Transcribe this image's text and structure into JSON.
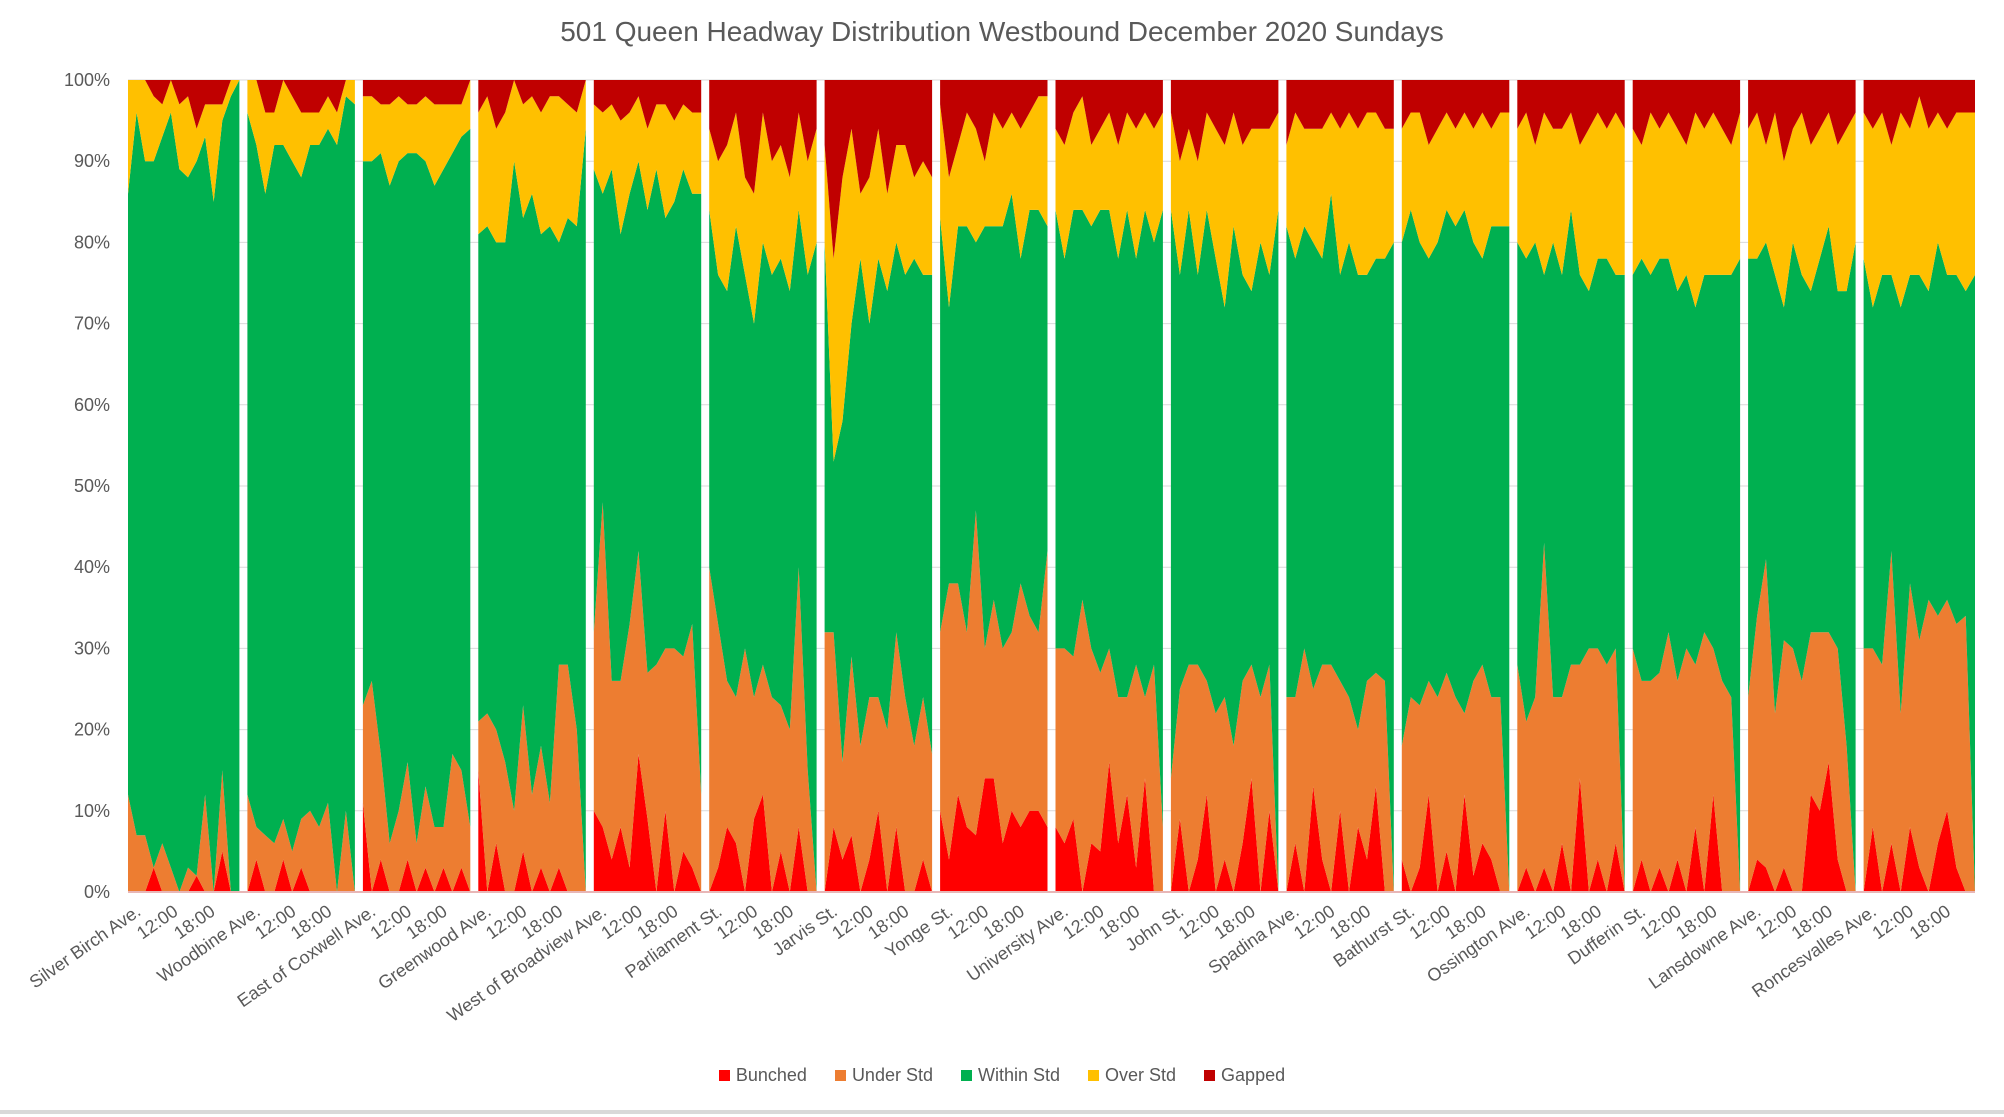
{
  "chart_data": {
    "type": "area",
    "stacked": "percent",
    "title": "501 Queen  Headway Distribution Westbound December 2020 Sundays",
    "xlabel": "",
    "ylabel": "",
    "ylim": [
      0,
      100
    ],
    "yticks": [
      "0%",
      "10%",
      "20%",
      "30%",
      "40%",
      "50%",
      "60%",
      "70%",
      "80%",
      "90%",
      "100%"
    ],
    "grid": true,
    "legend_position": "bottom",
    "series_meta": [
      {
        "name": "Bunched",
        "color": "#FF0000"
      },
      {
        "name": "Under Std",
        "color": "#ED7D31"
      },
      {
        "name": "Within Std",
        "color": "#00B050"
      },
      {
        "name": "Over Std",
        "color": "#FFC000"
      },
      {
        "name": "Gapped",
        "color": "#C00000"
      }
    ],
    "time_tick_labels": [
      "12:00",
      "18:00"
    ],
    "stops": [
      {
        "name": "Silver Birch Ave.",
        "bunched": [
          0,
          0,
          0,
          3,
          0,
          0,
          0,
          0,
          2,
          0,
          0,
          5,
          0,
          0
        ],
        "under": [
          12,
          7,
          7,
          0,
          6,
          3,
          0,
          3,
          0,
          12,
          0,
          10,
          0,
          0
        ],
        "over": [
          14,
          4,
          10,
          8,
          4,
          4,
          8,
          10,
          4,
          4,
          12,
          2,
          2,
          0
        ],
        "gapped": [
          0,
          0,
          0,
          2,
          3,
          0,
          3,
          2,
          6,
          3,
          3,
          3,
          0,
          0
        ]
      },
      {
        "name": "Woodbine Ave.",
        "bunched": [
          0,
          4,
          0,
          0,
          4,
          0,
          3,
          0,
          0,
          0,
          0,
          0,
          0
        ],
        "under": [
          12,
          4,
          7,
          6,
          5,
          5,
          6,
          10,
          8,
          11,
          0,
          10,
          0
        ],
        "over": [
          4,
          8,
          10,
          4,
          8,
          8,
          8,
          4,
          4,
          4,
          4,
          2,
          3
        ],
        "gapped": [
          0,
          0,
          4,
          4,
          0,
          2,
          4,
          4,
          4,
          2,
          4,
          0,
          0
        ]
      },
      {
        "name": "East of Coxwell Ave.",
        "bunched": [
          11,
          0,
          4,
          0,
          0,
          4,
          0,
          3,
          0,
          3,
          0,
          3,
          0
        ],
        "under": [
          12,
          26,
          13,
          6,
          10,
          12,
          6,
          10,
          8,
          5,
          17,
          12,
          8
        ],
        "over": [
          8,
          8,
          6,
          10,
          8,
          6,
          6,
          8,
          10,
          8,
          6,
          4,
          6
        ],
        "gapped": [
          2,
          2,
          3,
          3,
          2,
          3,
          3,
          2,
          3,
          3,
          3,
          3,
          0
        ]
      },
      {
        "name": "Greenwood Ave.",
        "bunched": [
          15,
          0,
          6,
          0,
          0,
          5,
          0,
          3,
          0,
          3,
          0,
          0,
          0
        ],
        "under": [
          6,
          22,
          14,
          16,
          10,
          18,
          12,
          15,
          11,
          25,
          28,
          20,
          0
        ],
        "over": [
          15,
          16,
          14,
          16,
          10,
          14,
          12,
          15,
          16,
          18,
          14,
          14,
          6
        ],
        "gapped": [
          4,
          2,
          6,
          4,
          0,
          3,
          2,
          4,
          2,
          2,
          3,
          4,
          0
        ]
      },
      {
        "name": "West of Broadview Ave.",
        "bunched": [
          10,
          8,
          4,
          8,
          3,
          17,
          9,
          0,
          10,
          0,
          5,
          3,
          0
        ],
        "under": [
          22,
          40,
          22,
          18,
          30,
          25,
          18,
          28,
          20,
          30,
          24,
          30,
          12
        ],
        "over": [
          8,
          10,
          8,
          14,
          10,
          8,
          10,
          8,
          14,
          10,
          8,
          10,
          10
        ],
        "gapped": [
          3,
          4,
          3,
          5,
          4,
          2,
          6,
          3,
          3,
          5,
          3,
          4,
          4
        ]
      },
      {
        "name": "Parliament St.",
        "bunched": [
          0,
          3,
          8,
          6,
          0,
          9,
          12,
          0,
          5,
          0,
          8,
          0,
          0
        ],
        "under": [
          40,
          30,
          18,
          18,
          30,
          15,
          16,
          24,
          18,
          20,
          32,
          15,
          0
        ],
        "over": [
          10,
          14,
          18,
          14,
          12,
          16,
          16,
          14,
          14,
          14,
          12,
          14,
          14
        ],
        "gapped": [
          6,
          10,
          8,
          4,
          12,
          14,
          4,
          10,
          8,
          12,
          4,
          10,
          6
        ]
      },
      {
        "name": "Jarvis St.",
        "bunched": [
          0,
          8,
          4,
          7,
          0,
          4,
          10,
          0,
          8,
          0,
          0,
          4,
          0
        ],
        "under": [
          32,
          24,
          12,
          22,
          18,
          20,
          14,
          20,
          24,
          24,
          18,
          20,
          17
        ],
        "over": [
          12,
          25,
          30,
          24,
          8,
          18,
          16,
          12,
          12,
          16,
          10,
          14,
          12
        ],
        "gapped": [
          8,
          22,
          12,
          6,
          14,
          12,
          6,
          14,
          8,
          8,
          12,
          10,
          12
        ]
      },
      {
        "name": "Yonge St.",
        "bunched": [
          10,
          4,
          12,
          8,
          7,
          14,
          14,
          6,
          10,
          8,
          10,
          10,
          8
        ],
        "under": [
          22,
          34,
          26,
          24,
          40,
          16,
          22,
          24,
          22,
          30,
          24,
          22,
          34
        ],
        "over": [
          14,
          16,
          10,
          14,
          14,
          8,
          14,
          12,
          10,
          16,
          12,
          14,
          16
        ],
        "gapped": [
          3,
          12,
          8,
          4,
          6,
          10,
          4,
          6,
          4,
          6,
          4,
          2,
          2
        ]
      },
      {
        "name": "University Ave.",
        "bunched": [
          8,
          6,
          9,
          0,
          6,
          5,
          16,
          6,
          12,
          3,
          14,
          0,
          0
        ],
        "under": [
          22,
          24,
          20,
          36,
          24,
          22,
          14,
          18,
          12,
          25,
          10,
          28,
          8
        ],
        "over": [
          10,
          14,
          12,
          14,
          10,
          10,
          12,
          14,
          12,
          16,
          12,
          14,
          12
        ],
        "gapped": [
          6,
          8,
          4,
          2,
          8,
          6,
          4,
          8,
          4,
          6,
          4,
          6,
          4
        ]
      },
      {
        "name": "John St.",
        "bunched": [
          0,
          9,
          0,
          4,
          12,
          0,
          4,
          0,
          6,
          14,
          0,
          10,
          0
        ],
        "under": [
          14,
          16,
          28,
          24,
          14,
          22,
          20,
          18,
          20,
          14,
          24,
          18,
          0
        ],
        "over": [
          12,
          14,
          10,
          14,
          12,
          16,
          20,
          14,
          16,
          20,
          14,
          18,
          12
        ],
        "gapped": [
          4,
          10,
          6,
          10,
          4,
          6,
          8,
          4,
          8,
          6,
          6,
          6,
          4
        ]
      },
      {
        "name": "Spadina Ave.",
        "bunched": [
          0,
          6,
          0,
          13,
          4,
          0,
          10,
          0,
          8,
          4,
          13,
          0,
          0
        ],
        "under": [
          24,
          18,
          30,
          12,
          24,
          28,
          16,
          24,
          12,
          22,
          14,
          26,
          0
        ],
        "over": [
          10,
          18,
          12,
          14,
          16,
          10,
          18,
          16,
          18,
          20,
          18,
          16,
          14
        ],
        "gapped": [
          8,
          4,
          6,
          6,
          6,
          4,
          6,
          4,
          6,
          4,
          4,
          6,
          6
        ]
      },
      {
        "name": "Bathurst St.",
        "bunched": [
          4,
          0,
          3,
          12,
          0,
          5,
          0,
          12,
          2,
          6,
          4,
          0,
          0
        ],
        "under": [
          14,
          24,
          20,
          14,
          24,
          22,
          24,
          10,
          24,
          22,
          20,
          24,
          0
        ],
        "over": [
          14,
          12,
          16,
          14,
          14,
          12,
          12,
          12,
          14,
          18,
          12,
          14,
          14
        ],
        "gapped": [
          6,
          4,
          4,
          8,
          6,
          4,
          6,
          4,
          6,
          4,
          6,
          4,
          4
        ]
      },
      {
        "name": "Ossington Ave.",
        "bunched": [
          0,
          3,
          0,
          3,
          0,
          6,
          0,
          14,
          0,
          4,
          0,
          6,
          0
        ],
        "under": [
          28,
          18,
          24,
          40,
          24,
          18,
          28,
          14,
          30,
          26,
          28,
          24,
          0
        ],
        "over": [
          14,
          18,
          12,
          20,
          14,
          18,
          12,
          16,
          20,
          18,
          16,
          20,
          18
        ],
        "gapped": [
          6,
          4,
          8,
          4,
          6,
          6,
          4,
          8,
          6,
          4,
          6,
          4,
          6
        ]
      },
      {
        "name": "Dufferin St.",
        "bunched": [
          0,
          4,
          0,
          3,
          0,
          4,
          0,
          8,
          0,
          12,
          0,
          0,
          0
        ],
        "under": [
          30,
          22,
          26,
          24,
          32,
          22,
          30,
          20,
          32,
          18,
          26,
          24,
          0
        ],
        "over": [
          18,
          14,
          20,
          16,
          18,
          20,
          16,
          24,
          18,
          20,
          18,
          16,
          18
        ],
        "gapped": [
          6,
          8,
          4,
          6,
          4,
          6,
          8,
          4,
          6,
          4,
          6,
          8,
          4
        ]
      },
      {
        "name": "Lansdowne Ave.",
        "bunched": [
          0,
          4,
          3,
          0,
          3,
          0,
          0,
          12,
          10,
          16,
          4,
          0,
          0
        ],
        "under": [
          24,
          30,
          38,
          22,
          28,
          30,
          26,
          20,
          22,
          16,
          26,
          18,
          0
        ],
        "over": [
          16,
          18,
          12,
          20,
          18,
          14,
          20,
          18,
          16,
          14,
          18,
          20,
          16
        ],
        "gapped": [
          6,
          4,
          8,
          4,
          10,
          6,
          4,
          8,
          6,
          4,
          8,
          6,
          4
        ]
      },
      {
        "name": "Roncesvalles Ave.",
        "bunched": [
          0,
          8,
          0,
          6,
          0,
          8,
          3,
          0,
          6,
          10,
          3,
          0,
          0
        ],
        "under": [
          30,
          22,
          28,
          36,
          22,
          30,
          28,
          36,
          28,
          26,
          30,
          34,
          0
        ],
        "over": [
          18,
          22,
          20,
          16,
          24,
          18,
          22,
          20,
          16,
          18,
          20,
          22,
          20
        ],
        "gapped": [
          4,
          6,
          4,
          8,
          4,
          6,
          2,
          6,
          4,
          6,
          4,
          4,
          4
        ]
      }
    ]
  }
}
